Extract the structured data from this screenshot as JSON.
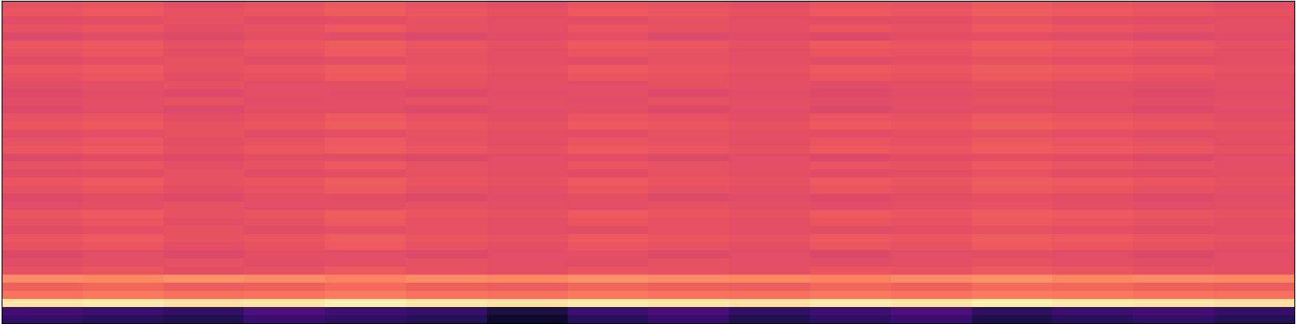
{
  "chart_data": {
    "type": "heatmap",
    "color": "magma",
    "clim": [
      0,
      100
    ],
    "tick_labels": false,
    "cells": [
      [
        63,
        64,
        62,
        63,
        65,
        63,
        62,
        64,
        63,
        62,
        64,
        63,
        65,
        64,
        63,
        62
      ],
      [
        64,
        65,
        63,
        64,
        66,
        64,
        63,
        65,
        64,
        63,
        65,
        64,
        66,
        65,
        64,
        63
      ],
      [
        61,
        62,
        63,
        61,
        62,
        63,
        62,
        61,
        63,
        62,
        61,
        62,
        63,
        62,
        61,
        62
      ],
      [
        63,
        64,
        62,
        63,
        65,
        63,
        62,
        64,
        63,
        62,
        64,
        63,
        65,
        64,
        63,
        62
      ],
      [
        60,
        61,
        60,
        62,
        61,
        60,
        61,
        62,
        60,
        61,
        60,
        61,
        62,
        61,
        60,
        61
      ],
      [
        64,
        65,
        63,
        64,
        66,
        64,
        63,
        65,
        64,
        63,
        65,
        64,
        66,
        65,
        64,
        63
      ],
      [
        63,
        64,
        62,
        63,
        65,
        63,
        62,
        64,
        63,
        62,
        64,
        63,
        65,
        64,
        63,
        62
      ],
      [
        61,
        62,
        63,
        61,
        62,
        63,
        62,
        61,
        63,
        62,
        61,
        62,
        63,
        62,
        61,
        62
      ],
      [
        64,
        65,
        63,
        64,
        66,
        64,
        63,
        65,
        64,
        63,
        65,
        64,
        66,
        65,
        64,
        63
      ],
      [
        63,
        64,
        62,
        63,
        65,
        63,
        62,
        64,
        63,
        62,
        64,
        63,
        65,
        64,
        63,
        62
      ],
      [
        61,
        62,
        63,
        61,
        62,
        63,
        62,
        61,
        63,
        62,
        61,
        62,
        63,
        62,
        61,
        62
      ],
      [
        60,
        61,
        60,
        62,
        61,
        60,
        61,
        62,
        60,
        61,
        60,
        61,
        62,
        61,
        60,
        61
      ],
      [
        61,
        62,
        63,
        61,
        62,
        63,
        62,
        61,
        63,
        62,
        61,
        62,
        63,
        62,
        61,
        62
      ],
      [
        60,
        61,
        60,
        62,
        61,
        60,
        61,
        62,
        60,
        61,
        60,
        61,
        62,
        61,
        60,
        61
      ],
      [
        63,
        64,
        62,
        63,
        65,
        63,
        62,
        64,
        63,
        62,
        64,
        63,
        65,
        64,
        63,
        62
      ],
      [
        64,
        65,
        63,
        64,
        66,
        64,
        63,
        65,
        64,
        63,
        65,
        64,
        66,
        65,
        64,
        63
      ],
      [
        61,
        62,
        63,
        61,
        62,
        63,
        62,
        61,
        63,
        62,
        61,
        62,
        63,
        62,
        61,
        62
      ],
      [
        63,
        64,
        62,
        63,
        65,
        63,
        62,
        64,
        63,
        62,
        64,
        63,
        65,
        64,
        63,
        62
      ],
      [
        64,
        65,
        63,
        64,
        66,
        64,
        63,
        65,
        64,
        63,
        65,
        64,
        66,
        65,
        64,
        63
      ],
      [
        60,
        61,
        60,
        62,
        61,
        60,
        61,
        62,
        60,
        61,
        60,
        61,
        62,
        61,
        60,
        61
      ],
      [
        63,
        64,
        62,
        63,
        65,
        63,
        62,
        64,
        63,
        62,
        64,
        63,
        65,
        64,
        63,
        62
      ],
      [
        61,
        62,
        63,
        61,
        62,
        63,
        62,
        61,
        63,
        62,
        61,
        62,
        63,
        62,
        61,
        62
      ],
      [
        64,
        65,
        63,
        64,
        66,
        64,
        63,
        65,
        64,
        63,
        65,
        64,
        66,
        65,
        64,
        63
      ],
      [
        63,
        64,
        62,
        63,
        65,
        63,
        62,
        64,
        63,
        62,
        64,
        63,
        65,
        64,
        63,
        62
      ],
      [
        60,
        61,
        60,
        62,
        61,
        60,
        61,
        62,
        60,
        61,
        60,
        61,
        62,
        61,
        60,
        61
      ],
      [
        61,
        62,
        63,
        61,
        62,
        63,
        62,
        61,
        63,
        62,
        61,
        62,
        63,
        62,
        61,
        62
      ],
      [
        64,
        65,
        63,
        64,
        66,
        64,
        63,
        65,
        64,
        63,
        65,
        64,
        66,
        65,
        64,
        63
      ],
      [
        63,
        64,
        62,
        63,
        65,
        63,
        62,
        64,
        63,
        62,
        64,
        63,
        65,
        64,
        63,
        62
      ],
      [
        61,
        62,
        63,
        61,
        62,
        63,
        62,
        61,
        63,
        62,
        61,
        62,
        63,
        62,
        61,
        62
      ],
      [
        64,
        65,
        63,
        64,
        66,
        64,
        63,
        65,
        64,
        63,
        65,
        64,
        66,
        65,
        64,
        63
      ],
      [
        63,
        64,
        62,
        63,
        65,
        63,
        62,
        64,
        63,
        62,
        64,
        63,
        65,
        64,
        63,
        62
      ],
      [
        60,
        61,
        60,
        62,
        61,
        60,
        61,
        62,
        60,
        61,
        60,
        61,
        62,
        61,
        60,
        61
      ],
      [
        61,
        62,
        63,
        61,
        62,
        63,
        62,
        61,
        63,
        62,
        61,
        62,
        63,
        62,
        61,
        62
      ],
      [
        63,
        64,
        62,
        63,
        65,
        63,
        62,
        64,
        63,
        62,
        64,
        63,
        65,
        64,
        63,
        62
      ],
      [
        76,
        75,
        77,
        76,
        74,
        76,
        75,
        77,
        76,
        75,
        74,
        76,
        77,
        75,
        76,
        75
      ],
      [
        67,
        68,
        66,
        67,
        69,
        67,
        66,
        68,
        67,
        66,
        68,
        67,
        69,
        68,
        67,
        66
      ],
      [
        71,
        72,
        70,
        71,
        73,
        71,
        70,
        72,
        71,
        70,
        72,
        71,
        73,
        72,
        71,
        70
      ],
      [
        95,
        96,
        94,
        95,
        97,
        95,
        94,
        96,
        95,
        94,
        96,
        95,
        97,
        96,
        95,
        94
      ],
      [
        22,
        20,
        18,
        24,
        21,
        19,
        12,
        20,
        23,
        18,
        21,
        24,
        17,
        20,
        22,
        19
      ],
      [
        18,
        16,
        14,
        20,
        17,
        15,
        8,
        16,
        19,
        14,
        17,
        20,
        13,
        16,
        18,
        15
      ]
    ]
  }
}
